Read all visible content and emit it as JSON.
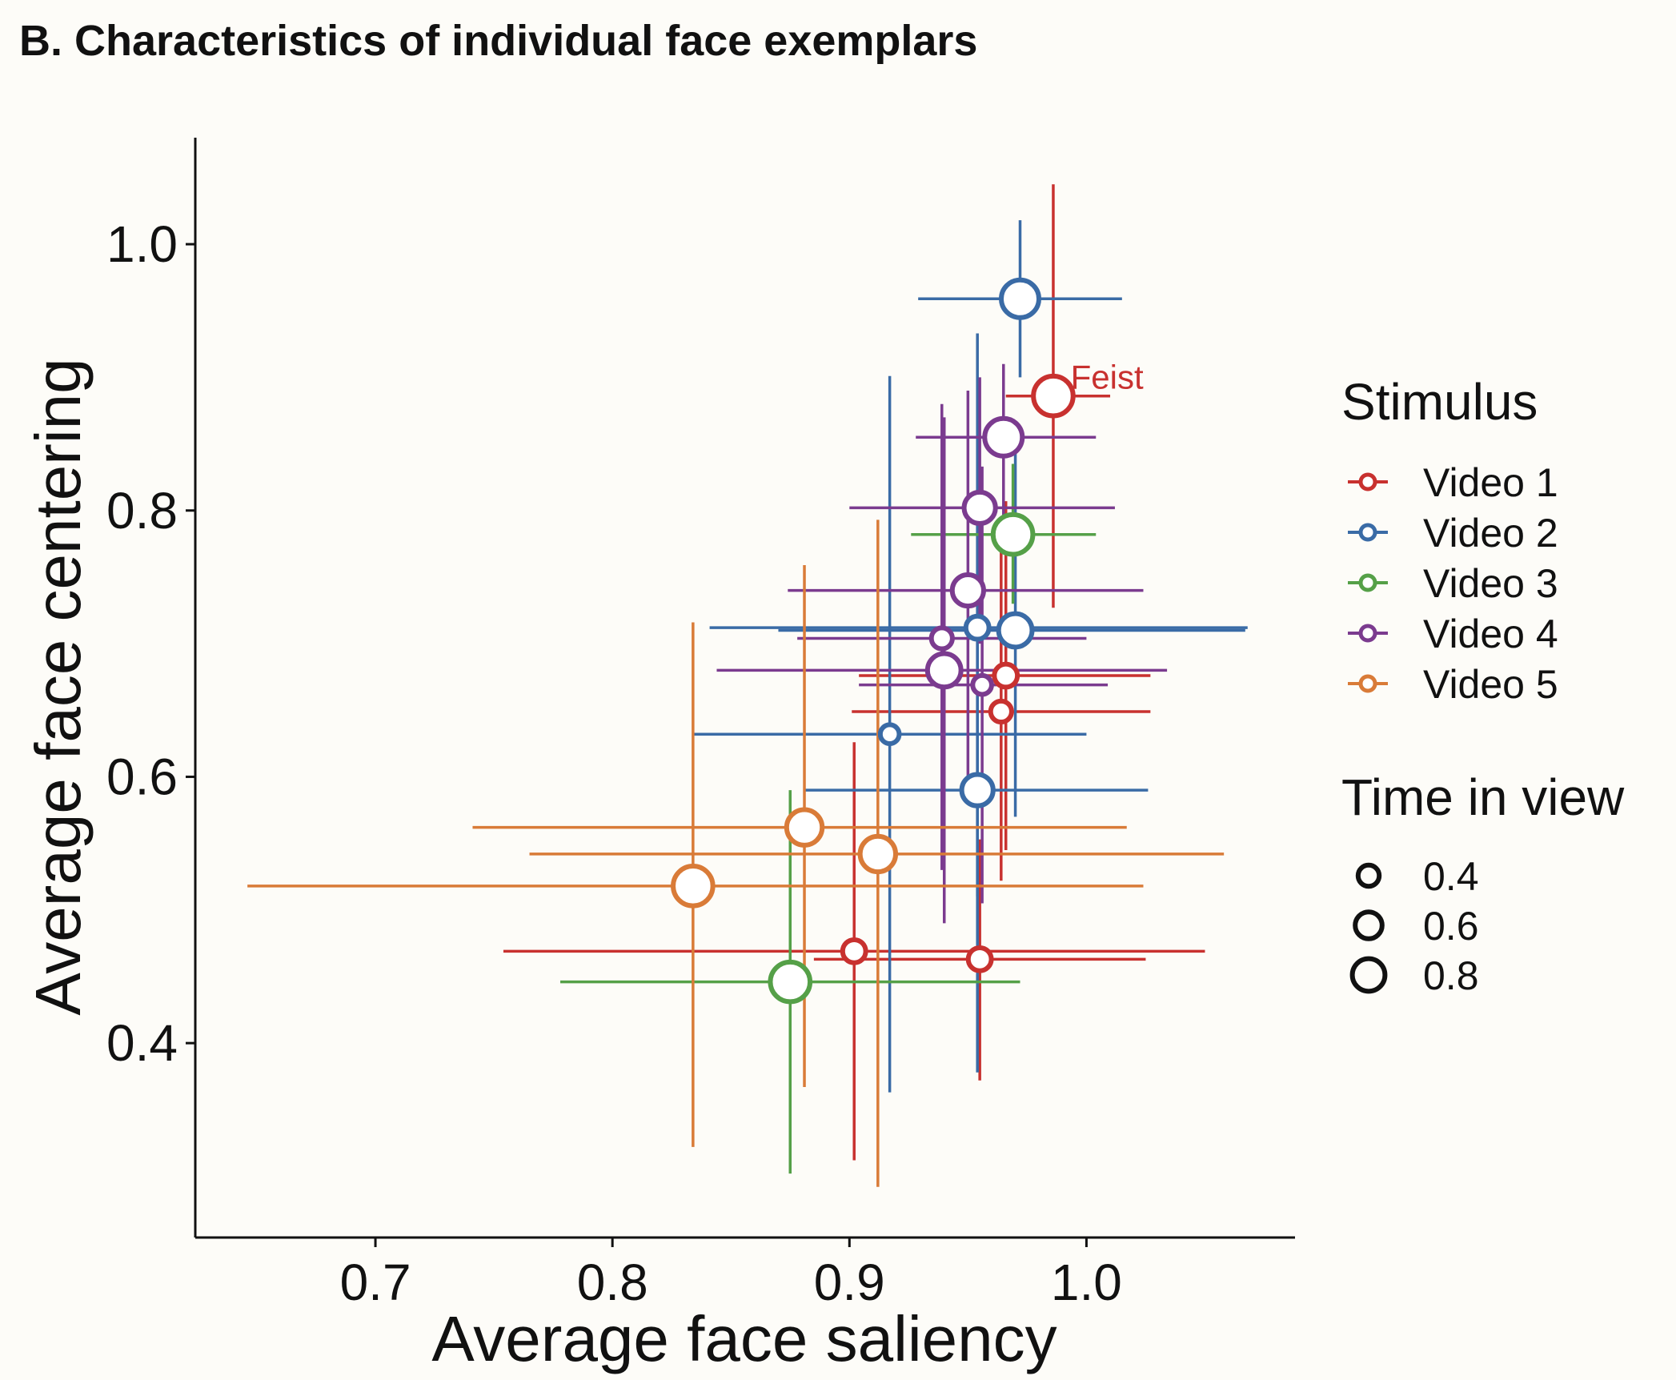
{
  "panel_title": "B. Characteristics of individual face exemplars",
  "chart_data": {
    "type": "scatter",
    "xlabel": "Average face saliency",
    "ylabel": "Average face centering",
    "xlim": [
      0.624,
      1.088
    ],
    "ylim": [
      0.254,
      1.08
    ],
    "x_ticks": [
      0.7,
      0.8,
      0.9,
      1.0
    ],
    "x_tick_labels": [
      "0.7",
      "0.8",
      "0.9",
      "1.0"
    ],
    "y_ticks": [
      0.4,
      0.6,
      0.8,
      1.0
    ],
    "y_tick_labels": [
      "0.4",
      "0.6",
      "0.8",
      "1.0"
    ],
    "legend_title": "Stimulus",
    "size_legend_title": "Time in view",
    "size_legend": [
      {
        "label": "0.4",
        "value": 0.4
      },
      {
        "label": "0.6",
        "value": 0.6
      },
      {
        "label": "0.8",
        "value": 0.8
      }
    ],
    "legend_position": "right",
    "grid": false,
    "annotations": [
      {
        "text": "Feist",
        "x": 0.995,
        "y": 0.9,
        "color": "#c8312f"
      }
    ],
    "series": [
      {
        "name": "Video 1",
        "color": "#c8312f",
        "points": [
          {
            "x": 0.986,
            "y": 0.886,
            "time": 0.8,
            "x_err": [
              0.966,
              1.01
            ],
            "y_err": [
              0.727,
              1.045
            ]
          },
          {
            "x": 0.966,
            "y": 0.676,
            "time": 0.4,
            "x_err": [
              0.904,
              1.027
            ],
            "y_err": [
              0.545,
              0.807
            ]
          },
          {
            "x": 0.964,
            "y": 0.649,
            "time": 0.35,
            "x_err": [
              0.901,
              1.027
            ],
            "y_err": [
              0.522,
              0.776
            ]
          },
          {
            "x": 0.902,
            "y": 0.469,
            "time": 0.4,
            "x_err": [
              0.754,
              1.05
            ],
            "y_err": [
              0.312,
              0.626
            ]
          },
          {
            "x": 0.955,
            "y": 0.463,
            "time": 0.4,
            "x_err": [
              0.885,
              1.025
            ],
            "y_err": [
              0.372,
              0.553
            ]
          }
        ]
      },
      {
        "name": "Video 2",
        "color": "#3a6ba6",
        "points": [
          {
            "x": 0.972,
            "y": 0.959,
            "time": 0.75,
            "x_err": [
              0.929,
              1.015
            ],
            "y_err": [
              0.9,
              1.018
            ]
          },
          {
            "x": 0.97,
            "y": 0.71,
            "time": 0.65,
            "x_err": [
              0.87,
              1.067
            ],
            "y_err": [
              0.57,
              0.85
            ]
          },
          {
            "x": 0.954,
            "y": 0.712,
            "time": 0.4,
            "x_err": [
              0.841,
              1.068
            ],
            "y_err": [
              0.51,
              0.933
            ]
          },
          {
            "x": 0.917,
            "y": 0.632,
            "time": 0.3,
            "x_err": [
              0.834,
              1.0
            ],
            "y_err": [
              0.363,
              0.901
            ]
          },
          {
            "x": 0.954,
            "y": 0.59,
            "time": 0.6,
            "x_err": [
              0.881,
              1.026
            ],
            "y_err": [
              0.378,
              0.8
            ]
          }
        ]
      },
      {
        "name": "Video 3",
        "color": "#55a048",
        "points": [
          {
            "x": 0.969,
            "y": 0.782,
            "time": 0.8,
            "x_err": [
              0.926,
              1.004
            ],
            "y_err": [
              0.73,
              0.835
            ]
          },
          {
            "x": 0.875,
            "y": 0.446,
            "time": 0.8,
            "x_err": [
              0.778,
              0.972
            ],
            "y_err": [
              0.302,
              0.59
            ]
          }
        ]
      },
      {
        "name": "Video 4",
        "color": "#7b3b8f",
        "points": [
          {
            "x": 0.965,
            "y": 0.855,
            "time": 0.75,
            "x_err": [
              0.928,
              1.004
            ],
            "y_err": [
              0.79,
              0.91
            ]
          },
          {
            "x": 0.955,
            "y": 0.802,
            "time": 0.6,
            "x_err": [
              0.9,
              1.012
            ],
            "y_err": [
              0.7,
              0.9
            ]
          },
          {
            "x": 0.95,
            "y": 0.74,
            "time": 0.6,
            "x_err": [
              0.874,
              1.024
            ],
            "y_err": [
              0.59,
              0.89
            ]
          },
          {
            "x": 0.939,
            "y": 0.704,
            "time": 0.35,
            "x_err": [
              0.878,
              1.0
            ],
            "y_err": [
              0.53,
              0.88
            ]
          },
          {
            "x": 0.94,
            "y": 0.68,
            "time": 0.65,
            "x_err": [
              0.844,
              1.034
            ],
            "y_err": [
              0.49,
              0.87
            ]
          },
          {
            "x": 0.956,
            "y": 0.669,
            "time": 0.3,
            "x_err": [
              0.904,
              1.009
            ],
            "y_err": [
              0.505,
              0.833
            ]
          }
        ]
      },
      {
        "name": "Video 5",
        "color": "#d97b38",
        "points": [
          {
            "x": 0.881,
            "y": 0.562,
            "time": 0.7,
            "x_err": [
              0.741,
              1.017
            ],
            "y_err": [
              0.367,
              0.759
            ]
          },
          {
            "x": 0.912,
            "y": 0.542,
            "time": 0.7,
            "x_err": [
              0.765,
              1.058
            ],
            "y_err": [
              0.292,
              0.793
            ]
          },
          {
            "x": 0.834,
            "y": 0.518,
            "time": 0.8,
            "x_err": [
              0.646,
              1.024
            ],
            "y_err": [
              0.322,
              0.716
            ]
          }
        ]
      }
    ]
  }
}
